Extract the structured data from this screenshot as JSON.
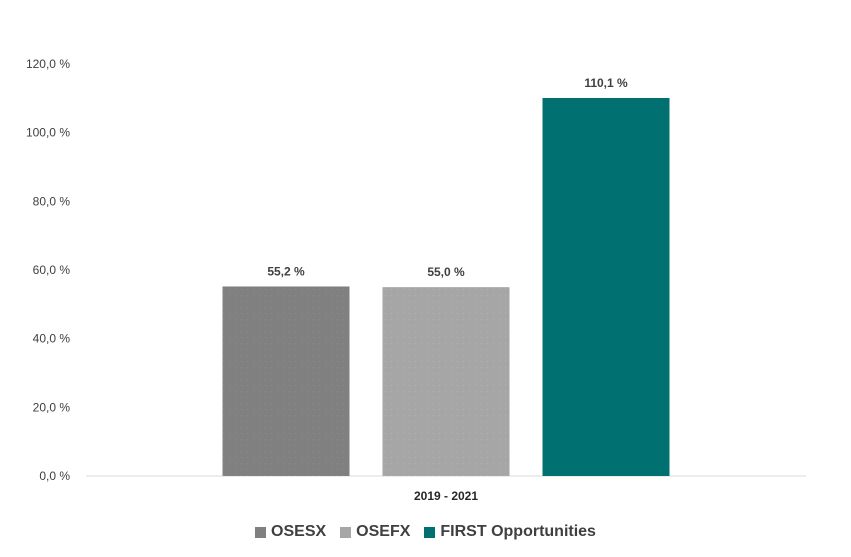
{
  "chart_data": {
    "type": "bar",
    "categories": [
      "2019 - 2021"
    ],
    "series": [
      {
        "name": "OSESX",
        "values": [
          55.2
        ],
        "label": "55,2 %",
        "color": "#808080"
      },
      {
        "name": "OSEFX",
        "values": [
          55.0
        ],
        "label": "55,0 %",
        "color": "#a6a6a6"
      },
      {
        "name": "FIRST Opportunities",
        "values": [
          110.1
        ],
        "label": "110,1 %",
        "color": "#007070"
      }
    ],
    "ylim": [
      0,
      120
    ],
    "yticks": [
      0,
      20,
      40,
      60,
      80,
      100,
      120
    ],
    "ytick_labels": [
      "0,0 %",
      "20,0 %",
      "40,0 %",
      "60,0 %",
      "80,0 %",
      "100,0 %",
      "120,0 %"
    ],
    "grid": false,
    "legend": "bottom"
  }
}
